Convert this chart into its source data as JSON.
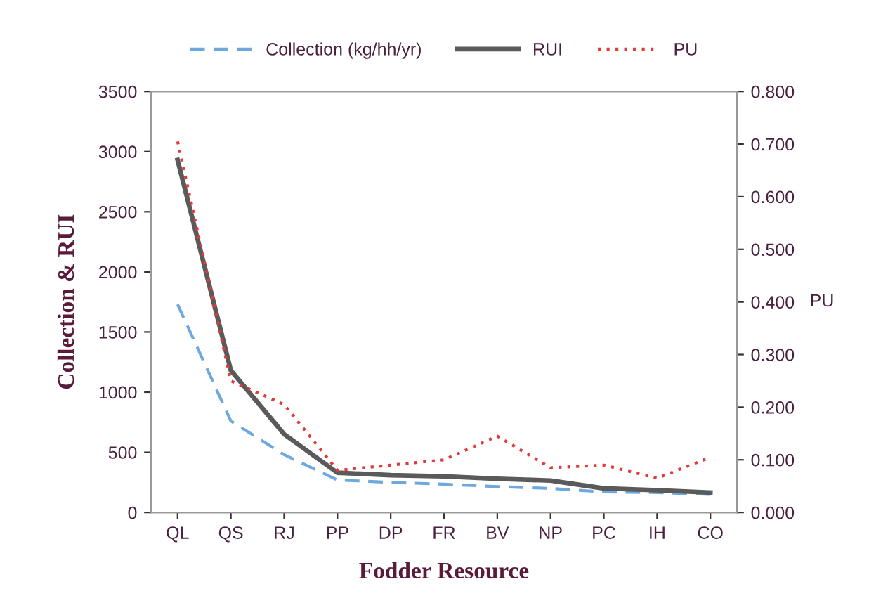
{
  "chart_data": {
    "type": "line",
    "xlabel": "Fodder Resource",
    "ylabel": "Collection & RUI",
    "y2label": "PU",
    "categories": [
      "QL",
      "QS",
      "RJ",
      "PP",
      "DP",
      "FR",
      "BV",
      "NP",
      "PC",
      "IH",
      "CO"
    ],
    "series": [
      {
        "name": "Collection (kg/hh/yr)",
        "color": "#6fa8dc",
        "line_style": "dashed",
        "values": [
          1730,
          760,
          480,
          270,
          250,
          235,
          215,
          200,
          170,
          165,
          150
        ]
      },
      {
        "name": "RUI",
        "color": "#5a5a5a",
        "line_style": "solid",
        "values": [
          2930,
          1180,
          650,
          330,
          310,
          300,
          280,
          265,
          200,
          185,
          165
        ]
      },
      {
        "name": "PU",
        "color": "#e03a3a",
        "line_style": "dotted",
        "axis": "y2",
        "values": [
          0.705,
          0.25,
          0.205,
          0.08,
          0.09,
          0.1,
          0.145,
          0.085,
          0.09,
          0.065,
          0.105
        ]
      }
    ],
    "ylim": [
      0,
      3500
    ],
    "yticks": [
      0,
      500,
      1000,
      1500,
      2000,
      2500,
      3000,
      3500
    ],
    "y2lim": [
      0,
      0.8
    ],
    "y2ticks": [
      {
        "value": 0,
        "label": "0.000"
      },
      {
        "value": 0.1,
        "label": "0.100"
      },
      {
        "value": 0.2,
        "label": "0.200"
      },
      {
        "value": 0.3,
        "label": "0.300"
      },
      {
        "value": 0.4,
        "label": "0.400"
      },
      {
        "value": 0.5,
        "label": "0.500"
      },
      {
        "value": 0.6,
        "label": "0.600"
      },
      {
        "value": 0.7,
        "label": "0.700"
      },
      {
        "value": 0.8,
        "label": "0.800"
      }
    ],
    "legend": "top",
    "grid": false
  }
}
